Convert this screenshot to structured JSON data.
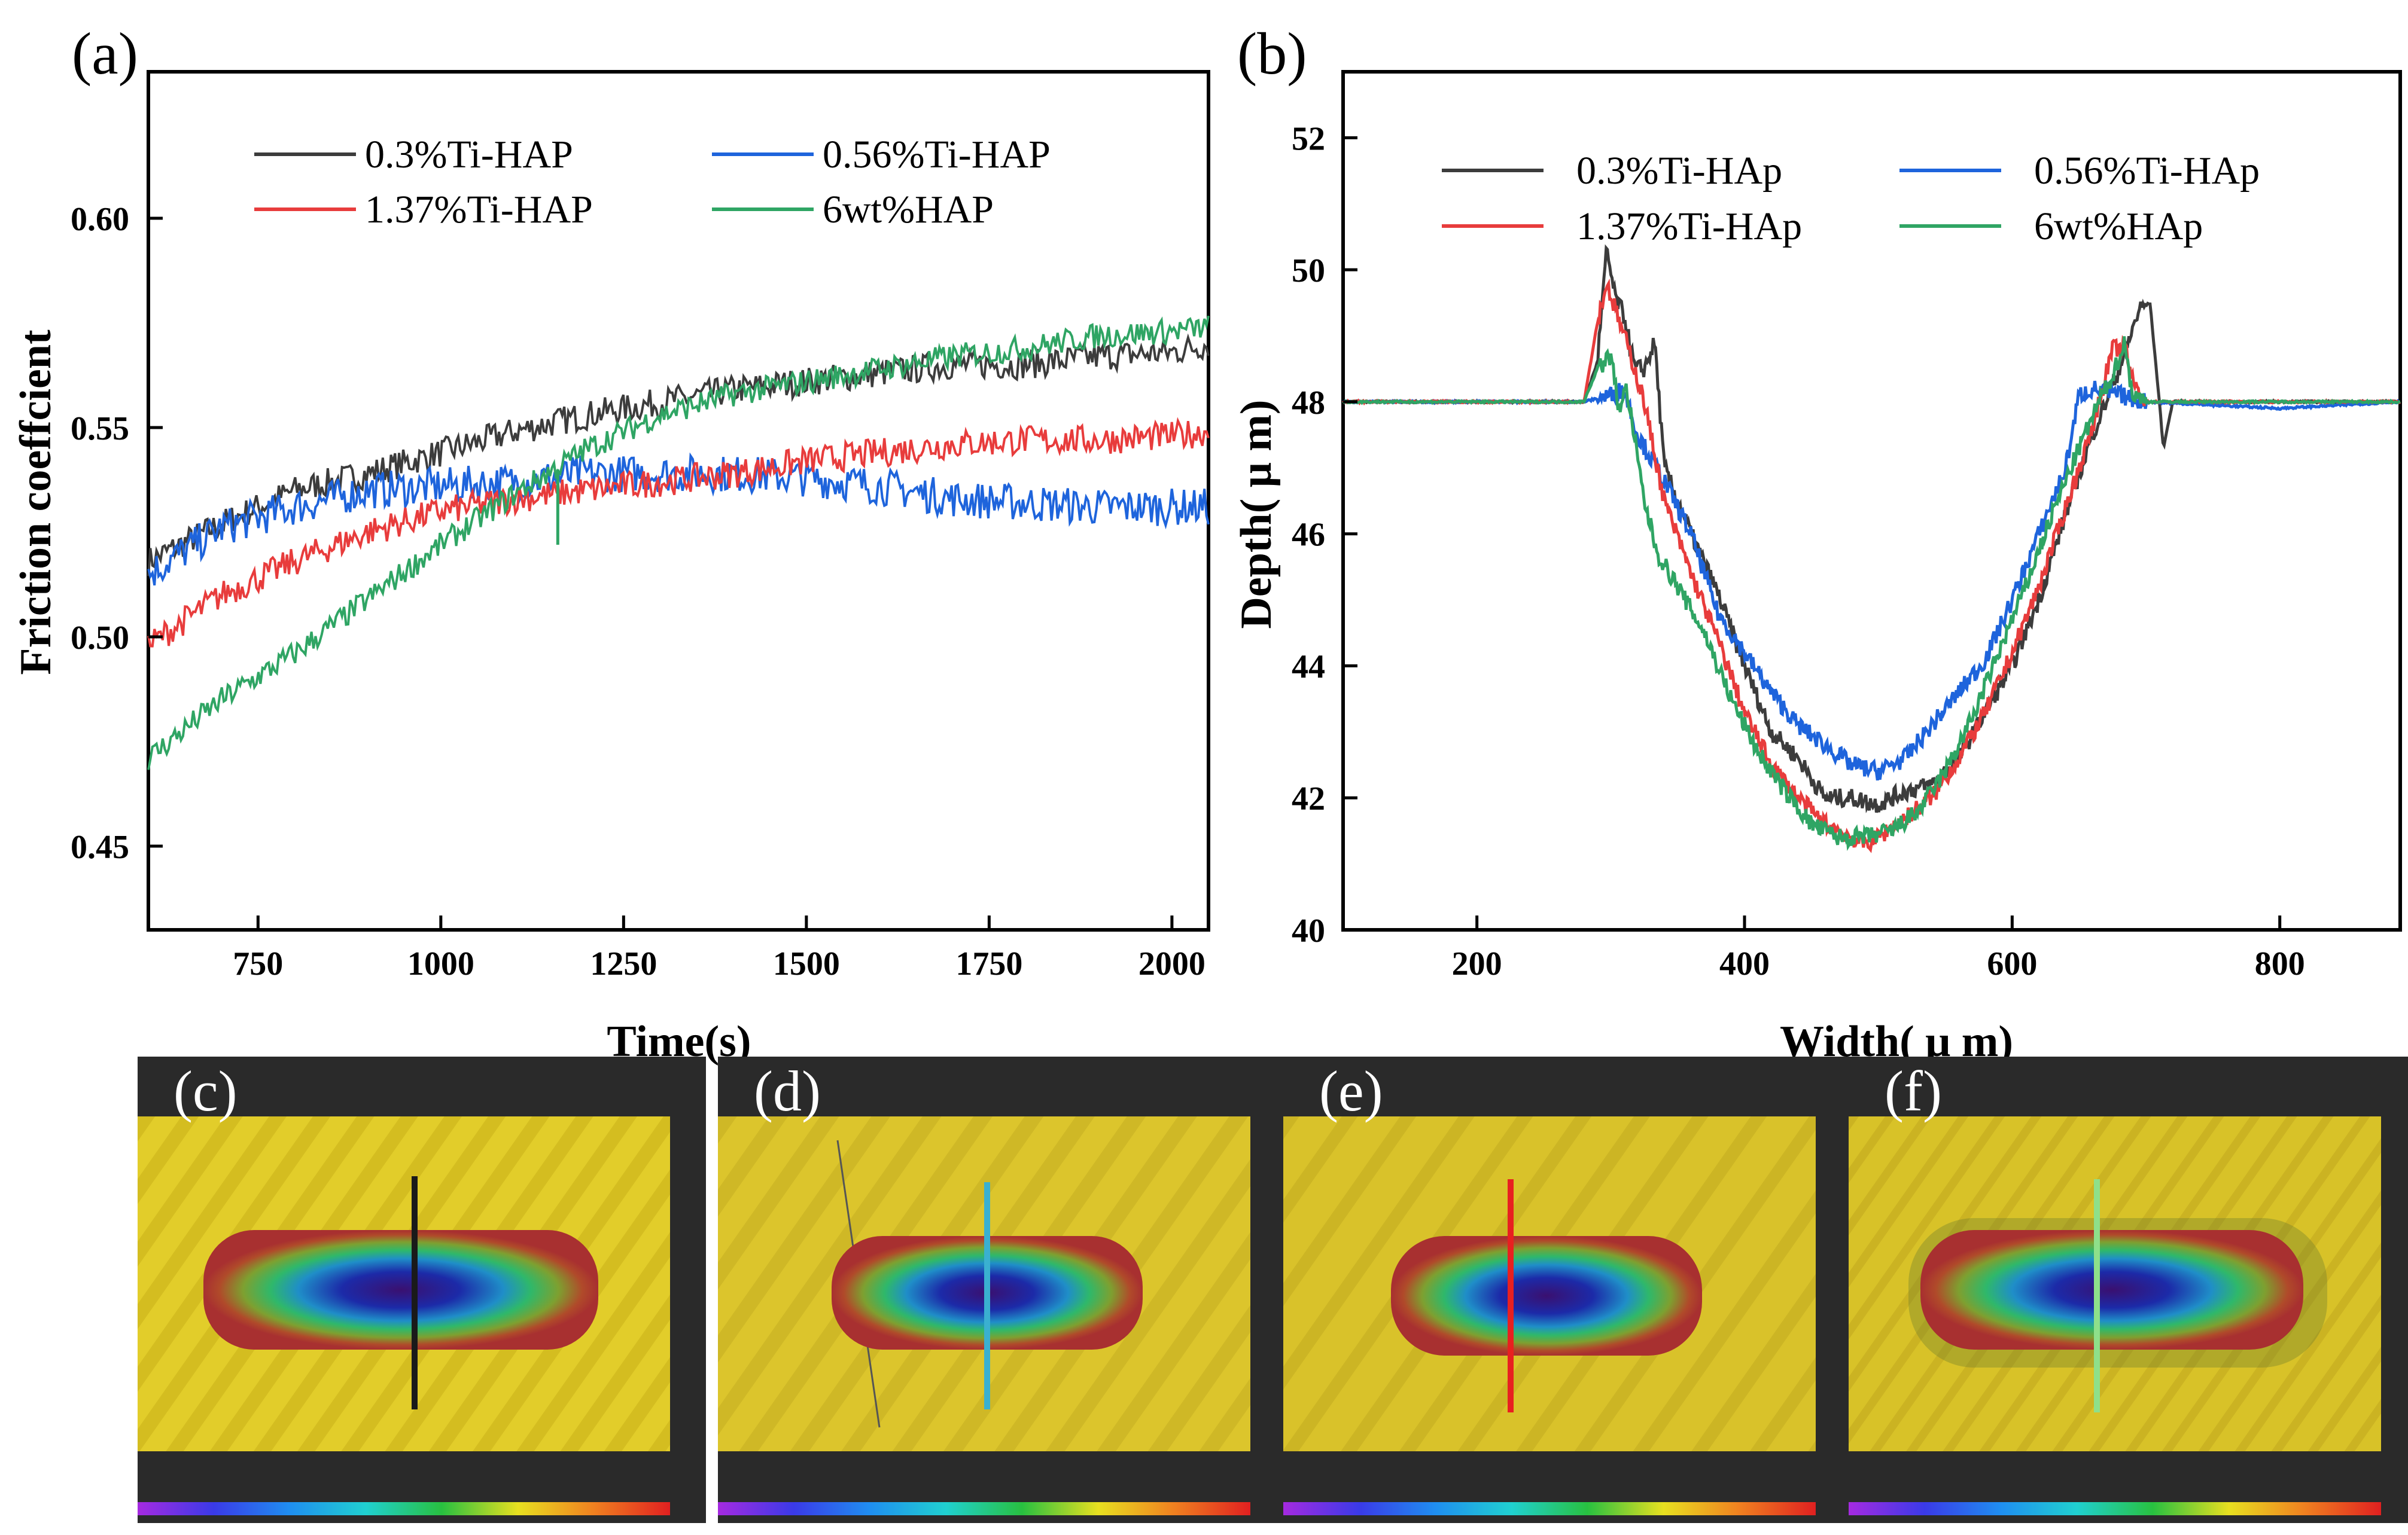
{
  "chart_data": [
    {
      "type": "line",
      "panel_label": "(a)",
      "title": "",
      "xlabel": "Time(s)",
      "ylabel": "Friction coeffcient",
      "xlim": [
        600,
        2050
      ],
      "ylim": [
        0.43,
        0.635
      ],
      "xticks": [
        750,
        1000,
        1250,
        1500,
        1750,
        2000
      ],
      "yticks": [
        "0.45",
        "0.50",
        "0.55",
        "0.60"
      ],
      "ytick_values": [
        0.45,
        0.5,
        0.55,
        0.6
      ],
      "legend_position": "top",
      "x": [
        600,
        700,
        800,
        900,
        1000,
        1100,
        1200,
        1300,
        1400,
        1500,
        1600,
        1700,
        1800,
        1900,
        2000,
        2050
      ],
      "series": [
        {
          "name": "0.3%Ti-HAP",
          "color": "#3c3c3c",
          "values": [
            0.518,
            0.527,
            0.535,
            0.539,
            0.544,
            0.549,
            0.553,
            0.556,
            0.559,
            0.561,
            0.563,
            0.565,
            0.565,
            0.567,
            0.568,
            0.57
          ]
        },
        {
          "name": "0.56%Ti-HAP",
          "color": "#1e64dc",
          "values": [
            0.515,
            0.526,
            0.531,
            0.535,
            0.536,
            0.537,
            0.539,
            0.539,
            0.539,
            0.538,
            0.536,
            0.533,
            0.532,
            0.531,
            0.531,
            0.531
          ]
        },
        {
          "name": "1.37%Ti-HAP",
          "color": "#e83c3c",
          "values": [
            0.498,
            0.51,
            0.518,
            0.525,
            0.53,
            0.533,
            0.535,
            0.537,
            0.539,
            0.542,
            0.544,
            0.546,
            0.547,
            0.547,
            0.548,
            0.549
          ]
        },
        {
          "name": "6wt%HAP",
          "color": "#2fa564",
          "values": [
            0.471,
            0.485,
            0.496,
            0.509,
            0.522,
            0.534,
            0.545,
            0.553,
            0.558,
            0.561,
            0.564,
            0.567,
            0.569,
            0.572,
            0.573,
            0.574
          ]
        }
      ]
    },
    {
      "type": "line",
      "panel_label": "(b)",
      "title": "",
      "xlabel": "Width( μ m)",
      "ylabel": "Depth( μ m)",
      "xlim": [
        100,
        890
      ],
      "ylim": [
        40,
        53
      ],
      "xticks": [
        200,
        400,
        600,
        800
      ],
      "yticks": [
        40,
        42,
        44,
        46,
        48,
        50,
        52
      ],
      "legend_position": "top",
      "series": [
        {
          "name": "0.3%Ti-HAp",
          "color": "#3c3c3c",
          "x": [
            100,
            280,
            290,
            297,
            303,
            310,
            318,
            325,
            333,
            340,
            360,
            380,
            400,
            420,
            440,
            460,
            480,
            500,
            520,
            540,
            560,
            580,
            600,
            620,
            640,
            660,
            680,
            695,
            703,
            710,
            713,
            720,
            890
          ],
          "y": [
            48.0,
            48.0,
            48.6,
            50.3,
            49.6,
            49.3,
            48.5,
            48.5,
            48.9,
            47.0,
            46.0,
            45.1,
            44.0,
            43.0,
            42.6,
            42.0,
            42.0,
            41.9,
            42.1,
            42.2,
            42.6,
            43.3,
            44.0,
            45.0,
            46.3,
            47.5,
            48.5,
            49.4,
            49.5,
            48.0,
            47.3,
            48.0,
            48.0
          ]
        },
        {
          "name": "0.56%Ti-HAp",
          "color": "#1e64dc",
          "x": [
            100,
            280,
            300,
            310,
            320,
            340,
            360,
            380,
            400,
            420,
            440,
            460,
            480,
            500,
            520,
            540,
            560,
            580,
            600,
            620,
            640,
            650,
            660,
            680,
            700,
            800,
            890
          ],
          "y": [
            48.0,
            48.0,
            48.1,
            48.2,
            47.5,
            46.8,
            46.0,
            44.8,
            44.2,
            43.6,
            43.1,
            42.8,
            42.5,
            42.4,
            42.6,
            43.1,
            43.6,
            44.1,
            45.0,
            46.0,
            47.0,
            48.1,
            48.2,
            48.1,
            48.0,
            47.9,
            48.0
          ]
        },
        {
          "name": "1.37%Ti-HAp",
          "color": "#e83c3c",
          "x": [
            100,
            280,
            290,
            297,
            305,
            315,
            325,
            340,
            360,
            380,
            400,
            420,
            440,
            460,
            480,
            490,
            500,
            520,
            540,
            560,
            580,
            600,
            620,
            640,
            660,
            675,
            685,
            690,
            700,
            890
          ],
          "y": [
            48.0,
            48.0,
            49.2,
            49.8,
            49.3,
            48.7,
            48.0,
            46.5,
            45.4,
            44.4,
            43.3,
            42.5,
            42.0,
            41.6,
            41.4,
            41.3,
            41.4,
            41.7,
            42.0,
            42.6,
            43.3,
            44.2,
            45.2,
            46.4,
            47.6,
            48.8,
            48.8,
            48.3,
            48.0,
            48.0
          ]
        },
        {
          "name": "6wt%HAp",
          "color": "#2fa564",
          "x": [
            100,
            280,
            290,
            300,
            306,
            312,
            318,
            325,
            335,
            350,
            370,
            390,
            410,
            430,
            450,
            470,
            490,
            510,
            530,
            550,
            570,
            590,
            610,
            630,
            650,
            665,
            675,
            684,
            690,
            700,
            890
          ],
          "y": [
            48.0,
            48.0,
            48.5,
            48.7,
            47.9,
            48.2,
            47.4,
            46.5,
            45.7,
            45.2,
            44.5,
            43.5,
            42.7,
            42.1,
            41.6,
            41.4,
            41.4,
            41.5,
            41.8,
            42.4,
            43.2,
            44.2,
            45.2,
            46.3,
            47.3,
            48.0,
            48.4,
            48.9,
            48.1,
            48.0,
            48.0
          ]
        }
      ]
    }
  ],
  "micrographs": [
    {
      "label": "(c)",
      "line_color": "#1a1a1a"
    },
    {
      "label": "(d)",
      "line_color": "#3ab0d0"
    },
    {
      "label": "(e)",
      "line_color": "#e82020"
    },
    {
      "label": "(f)",
      "line_color": "#8ee08a"
    }
  ]
}
